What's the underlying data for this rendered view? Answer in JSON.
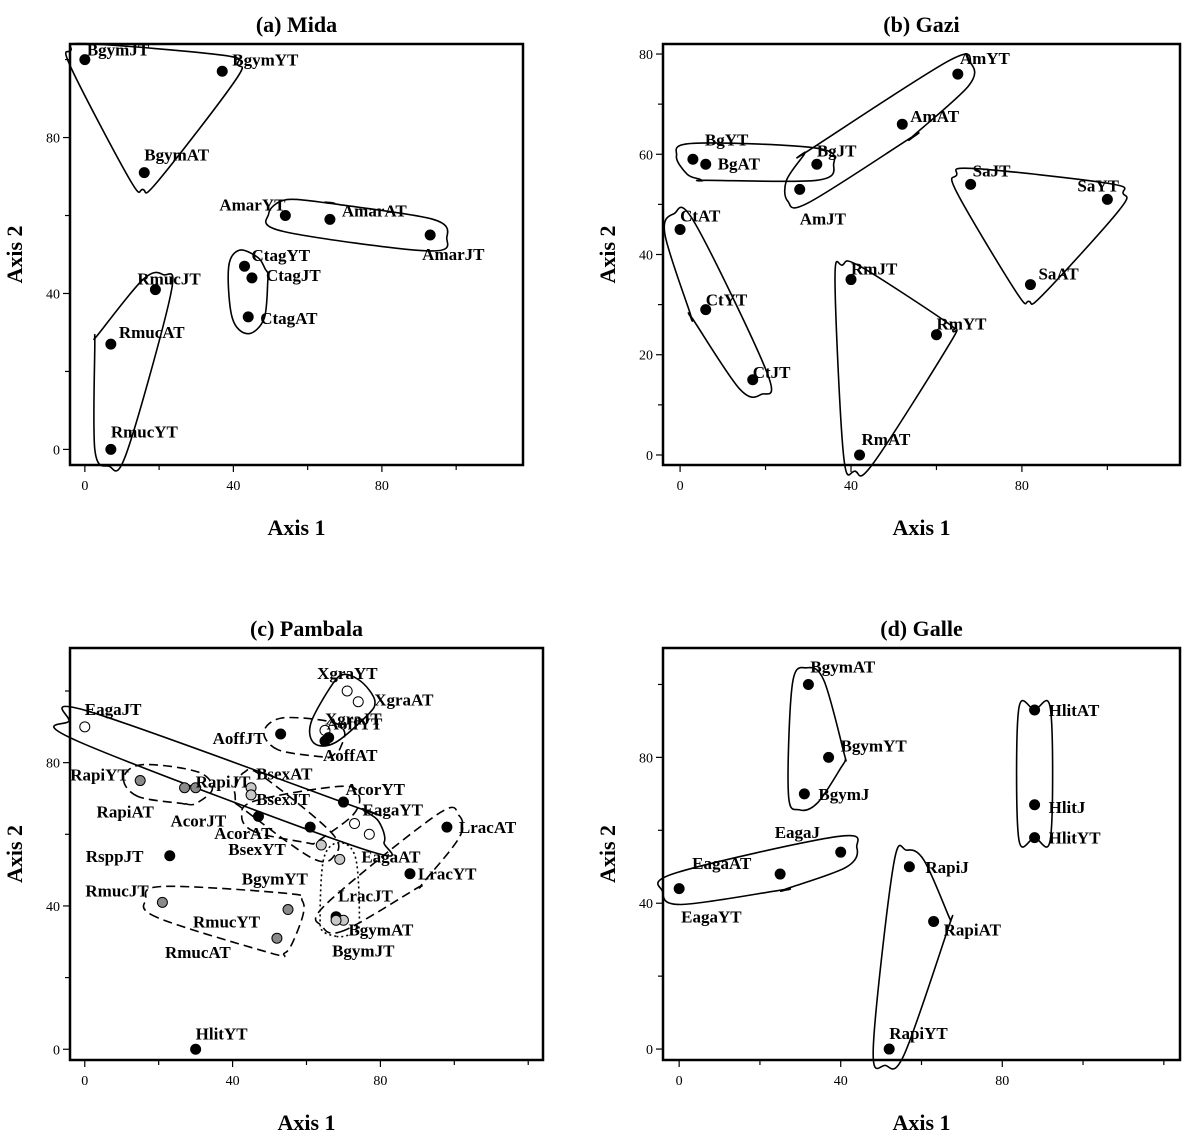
{
  "chart_data": [
    {
      "type": "scatter",
      "title": "(a) Mida",
      "xlabel": "Axis 1",
      "ylabel": "Axis 2",
      "xlim": [
        -4,
        118
      ],
      "ylim": [
        -4,
        104
      ],
      "xticks": [
        0,
        40,
        80
      ],
      "yticks": [
        0,
        40,
        80
      ],
      "points": [
        {
          "label": "BgymJT",
          "x": 0,
          "y": 100,
          "fill": "black"
        },
        {
          "label": "BgymYT",
          "x": 37,
          "y": 97,
          "fill": "black"
        },
        {
          "label": "BgymAT",
          "x": 16,
          "y": 71,
          "fill": "black"
        },
        {
          "label": "AmarYT",
          "x": 54,
          "y": 60,
          "fill": "black"
        },
        {
          "label": "AmarAT",
          "x": 66,
          "y": 59,
          "fill": "black"
        },
        {
          "label": "AmarJT",
          "x": 93,
          "y": 55,
          "fill": "black"
        },
        {
          "label": "CtagYT",
          "x": 43,
          "y": 47,
          "fill": "black"
        },
        {
          "label": "CtagJT",
          "x": 45,
          "y": 44,
          "fill": "black"
        },
        {
          "label": "CtagAT",
          "x": 44,
          "y": 34,
          "fill": "black"
        },
        {
          "label": "RmucJT",
          "x": 19,
          "y": 41,
          "fill": "black"
        },
        {
          "label": "RmucAT",
          "x": 7,
          "y": 27,
          "fill": "black"
        },
        {
          "label": "RmucYT",
          "x": 7,
          "y": 0,
          "fill": "black"
        }
      ],
      "groups": [
        {
          "members": [
            "BgymJT",
            "BgymYT",
            "BgymAT"
          ],
          "style": "solid"
        },
        {
          "members": [
            "AmarYT",
            "AmarAT",
            "AmarJT"
          ],
          "style": "solid"
        },
        {
          "members": [
            "CtagYT",
            "CtagJT",
            "CtagAT"
          ],
          "style": "solid"
        },
        {
          "members": [
            "RmucJT",
            "RmucAT",
            "RmucYT"
          ],
          "style": "solid"
        }
      ]
    },
    {
      "type": "scatter",
      "title": "(b) Gazi",
      "xlabel": "Axis 1",
      "ylabel": "Axis 2",
      "xlim": [
        -4,
        117
      ],
      "ylim": [
        -2,
        82
      ],
      "xticks": [
        0,
        40,
        80
      ],
      "yticks": [
        0,
        20,
        40,
        60,
        80
      ],
      "points": [
        {
          "label": "AmYT",
          "x": 65,
          "y": 76,
          "fill": "black"
        },
        {
          "label": "AmAT",
          "x": 52,
          "y": 66,
          "fill": "black"
        },
        {
          "label": "BgYT",
          "x": 3,
          "y": 59,
          "fill": "black"
        },
        {
          "label": "BgAT",
          "x": 6,
          "y": 58,
          "fill": "black"
        },
        {
          "label": "BgJT",
          "x": 32,
          "y": 58,
          "fill": "black"
        },
        {
          "label": "AmJT",
          "x": 28,
          "y": 53,
          "fill": "black"
        },
        {
          "label": "SaJT",
          "x": 68,
          "y": 54,
          "fill": "black"
        },
        {
          "label": "SaYT",
          "x": 100,
          "y": 51,
          "fill": "black"
        },
        {
          "label": "SaAT",
          "x": 82,
          "y": 34,
          "fill": "black"
        },
        {
          "label": "CtAT",
          "x": 0,
          "y": 45,
          "fill": "black"
        },
        {
          "label": "CtYT",
          "x": 6,
          "y": 29,
          "fill": "black"
        },
        {
          "label": "CtJT",
          "x": 17,
          "y": 15,
          "fill": "black"
        },
        {
          "label": "RmJT",
          "x": 40,
          "y": 35,
          "fill": "black"
        },
        {
          "label": "RmYT",
          "x": 60,
          "y": 24,
          "fill": "black"
        },
        {
          "label": "RmAT",
          "x": 42,
          "y": 0,
          "fill": "black"
        }
      ],
      "groups": [
        {
          "members": [
            "BgYT",
            "BgAT",
            "BgJT"
          ],
          "style": "solid"
        },
        {
          "members": [
            "AmYT",
            "AmAT",
            "BgJT",
            "AmJT"
          ],
          "style": "solid"
        },
        {
          "members": [
            "SaJT",
            "SaYT",
            "SaAT"
          ],
          "style": "solid"
        },
        {
          "members": [
            "CtAT",
            "CtYT",
            "CtJT"
          ],
          "style": "solid"
        },
        {
          "members": [
            "RmJT",
            "RmYT",
            "RmAT"
          ],
          "style": "solid"
        }
      ]
    },
    {
      "type": "scatter",
      "title": "(c) Pambala",
      "xlabel": "Axis 1",
      "ylabel": "Axis 2",
      "xlim": [
        -4,
        124
      ],
      "ylim": [
        -3,
        112
      ],
      "xticks": [
        0,
        40,
        80
      ],
      "yticks": [
        0,
        40,
        80
      ],
      "points": [
        {
          "label": "XgraYT",
          "x": 71,
          "y": 100,
          "fill": "white"
        },
        {
          "label": "XgraAT",
          "x": 74,
          "y": 97,
          "fill": "white"
        },
        {
          "label": "XgraJT",
          "x": 65,
          "y": 89,
          "fill": "white"
        },
        {
          "label": "EagaJT",
          "x": 0,
          "y": 90,
          "fill": "white"
        },
        {
          "label": "AoffJT",
          "x": 53,
          "y": 88,
          "fill": "black"
        },
        {
          "label": "AoffYT",
          "x": 66,
          "y": 87,
          "fill": "black"
        },
        {
          "label": "AoffAT",
          "x": 65,
          "y": 86,
          "fill": "black"
        },
        {
          "label": "RapiYT",
          "x": 15,
          "y": 75,
          "fill": "grey"
        },
        {
          "label": "RapiAT",
          "x": 27,
          "y": 73,
          "fill": "grey"
        },
        {
          "label": "RapiJT",
          "x": 30,
          "y": 73,
          "fill": "grey"
        },
        {
          "label": "BsexAT",
          "x": 45,
          "y": 73,
          "fill": "lightgrey"
        },
        {
          "label": "BsexJT",
          "x": 45,
          "y": 71,
          "fill": "lightgrey"
        },
        {
          "label": "AcorYT",
          "x": 70,
          "y": 69,
          "fill": "black"
        },
        {
          "label": "AcorJT",
          "x": 47,
          "y": 65,
          "fill": "black"
        },
        {
          "label": "AcorAT",
          "x": 61,
          "y": 62,
          "fill": "black"
        },
        {
          "label": "EagaYT",
          "x": 73,
          "y": 63,
          "fill": "white"
        },
        {
          "label": "EagaAT",
          "x": 77,
          "y": 60,
          "fill": "white"
        },
        {
          "label": "LracAT",
          "x": 98,
          "y": 62,
          "fill": "black"
        },
        {
          "label": "BsexYT",
          "x": 64,
          "y": 57,
          "fill": "lightgrey"
        },
        {
          "label": "BgymYT",
          "x": 69,
          "y": 53,
          "fill": "lightgrey"
        },
        {
          "label": "RsppJT",
          "x": 23,
          "y": 54,
          "fill": "black"
        },
        {
          "label": "LracYT",
          "x": 88,
          "y": 49,
          "fill": "black"
        },
        {
          "label": "RmucJT",
          "x": 21,
          "y": 41,
          "fill": "grey"
        },
        {
          "label": "RmucYT",
          "x": 55,
          "y": 39,
          "fill": "grey"
        },
        {
          "label": "RmucAT",
          "x": 52,
          "y": 31,
          "fill": "grey"
        },
        {
          "label": "LracJT",
          "x": 68,
          "y": 37,
          "fill": "black"
        },
        {
          "label": "BgymAT",
          "x": 70,
          "y": 36,
          "fill": "lightgrey"
        },
        {
          "label": "BgymJT",
          "x": 68,
          "y": 36,
          "fill": "lightgrey"
        },
        {
          "label": "HlitYT",
          "x": 30,
          "y": 0,
          "fill": "black"
        }
      ],
      "groups": [
        {
          "members": [
            "XgraYT",
            "XgraAT",
            "XgraJT"
          ],
          "style": "solid"
        },
        {
          "members": [
            "AoffJT",
            "AoffYT",
            "AoffAT"
          ],
          "style": "dashed"
        },
        {
          "members": [
            "EagaJT",
            "EagaYT",
            "EagaAT"
          ],
          "style": "solid"
        },
        {
          "members": [
            "RapiYT",
            "RapiAT",
            "RapiJT"
          ],
          "style": "dashed"
        },
        {
          "members": [
            "BsexAT",
            "BsexJT",
            "BsexYT"
          ],
          "style": "dashed"
        },
        {
          "members": [
            "AcorYT",
            "AcorJT",
            "AcorAT"
          ],
          "style": "dashed"
        },
        {
          "members": [
            "LracAT",
            "LracYT",
            "LracJT"
          ],
          "style": "dashed"
        },
        {
          "members": [
            "RmucJT",
            "RmucYT",
            "RmucAT"
          ],
          "style": "dashed"
        },
        {
          "members": [
            "BgymYT",
            "BgymAT",
            "BgymJT"
          ],
          "style": "dotted"
        }
      ]
    },
    {
      "type": "scatter",
      "title": "(d) Galle",
      "xlabel": "Axis 1",
      "ylabel": "Axis 2",
      "xlim": [
        -4,
        124
      ],
      "ylim": [
        -3,
        110
      ],
      "xticks": [
        0,
        40,
        80
      ],
      "yticks": [
        0,
        40,
        80
      ],
      "points": [
        {
          "label": "BgymAT",
          "x": 32,
          "y": 100,
          "fill": "black"
        },
        {
          "label": "BgymYT",
          "x": 37,
          "y": 80,
          "fill": "black"
        },
        {
          "label": "BgymJ",
          "x": 31,
          "y": 70,
          "fill": "black"
        },
        {
          "label": "HlitAT",
          "x": 88,
          "y": 93,
          "fill": "black"
        },
        {
          "label": "HlitJ",
          "x": 88,
          "y": 67,
          "fill": "black"
        },
        {
          "label": "HlitYT",
          "x": 88,
          "y": 58,
          "fill": "black"
        },
        {
          "label": "EagaJ",
          "x": 40,
          "y": 54,
          "fill": "black"
        },
        {
          "label": "EagaAT",
          "x": 25,
          "y": 48,
          "fill": "black"
        },
        {
          "label": "EagaYT",
          "x": 0,
          "y": 44,
          "fill": "black"
        },
        {
          "label": "RapiJ",
          "x": 57,
          "y": 50,
          "fill": "black"
        },
        {
          "label": "RapiAT",
          "x": 63,
          "y": 35,
          "fill": "black"
        },
        {
          "label": "RapiYT",
          "x": 52,
          "y": 0,
          "fill": "black"
        }
      ],
      "groups": [
        {
          "members": [
            "BgymAT",
            "BgymYT",
            "BgymJ"
          ],
          "style": "solid"
        },
        {
          "members": [
            "HlitAT",
            "HlitJ",
            "HlitYT"
          ],
          "style": "solid"
        },
        {
          "members": [
            "EagaJ",
            "EagaAT",
            "EagaYT"
          ],
          "style": "solid"
        },
        {
          "members": [
            "RapiJ",
            "RapiAT",
            "RapiYT"
          ],
          "style": "solid"
        }
      ]
    }
  ]
}
